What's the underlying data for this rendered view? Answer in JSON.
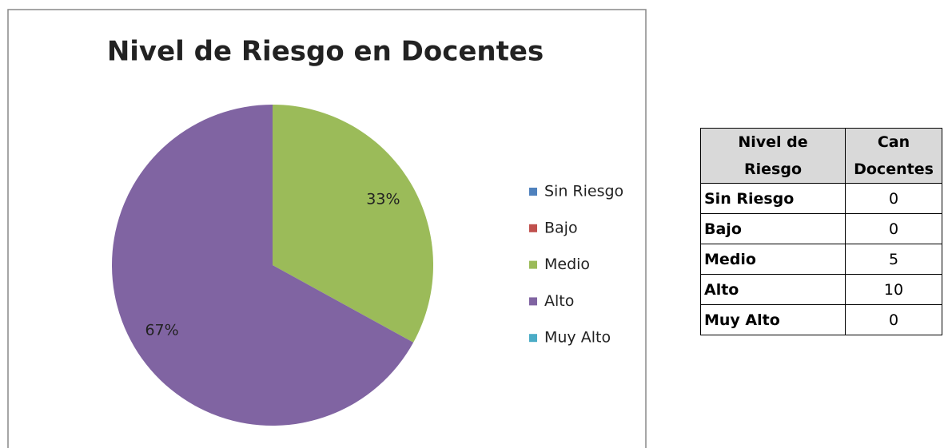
{
  "chart_data": {
    "type": "pie",
    "title": "Nivel de Riesgo en Docentes",
    "categories": [
      "Sin Riesgo",
      "Bajo",
      "Medio",
      "Alto",
      "Muy Alto"
    ],
    "values": [
      0,
      0,
      33,
      67,
      0
    ],
    "value_labels": [
      null,
      null,
      "33%",
      "67%",
      null
    ],
    "colors": [
      "#4f81bd",
      "#c0504d",
      "#9bbb59",
      "#8064a2",
      "#4bacc6"
    ],
    "legend": "right"
  },
  "table": {
    "header": [
      "Nivel de Riesgo",
      "Can Docentes"
    ],
    "rows": [
      [
        "Sin Riesgo",
        0
      ],
      [
        "Bajo",
        0
      ],
      [
        "Medio",
        5
      ],
      [
        "Alto",
        10
      ],
      [
        "Muy Alto",
        0
      ]
    ]
  }
}
